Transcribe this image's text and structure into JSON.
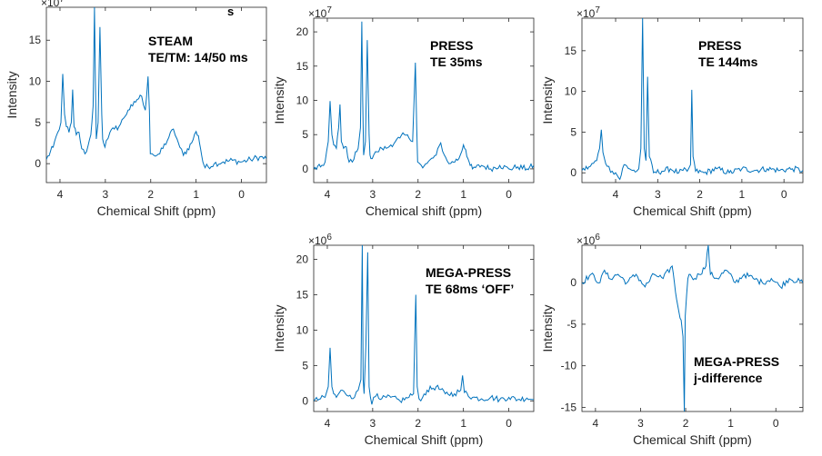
{
  "stray_label": "s",
  "style": {
    "line_color": "#0072BD",
    "axis_color": "#262626"
  },
  "chart_data": [
    {
      "type": "line",
      "annotation": [
        "STEAM",
        "TE/TM: 14/50 ms"
      ],
      "xlabel": "Chemical Shift (ppm)",
      "ylabel": "Intensity",
      "exponent": "×10^7",
      "x_reversed": true,
      "xlim": [
        -0.55,
        4.3
      ],
      "ylim": [
        -2.3,
        19
      ],
      "xticks": [
        4,
        3,
        2,
        1,
        0
      ],
      "yticks": [
        0,
        5,
        10,
        15
      ],
      "series": [
        {
          "x": [
            4.3,
            4.15,
            4.05,
            3.98,
            3.94,
            3.9,
            3.86,
            3.8,
            3.75,
            3.72,
            3.69,
            3.64,
            3.58,
            3.52,
            3.45,
            3.38,
            3.32,
            3.27,
            3.24,
            3.22,
            3.2,
            3.16,
            3.12,
            3.08,
            3.06,
            3.04,
            3.01,
            2.98,
            2.9,
            2.8,
            2.7,
            2.6,
            2.5,
            2.4,
            2.3,
            2.2,
            2.12,
            2.06,
            2.03,
            2.01,
            1.97,
            1.93,
            1.8,
            1.6,
            1.5,
            1.42,
            1.36,
            1.28,
            1.1,
            1.0,
            0.95,
            0.9,
            0.85,
            0.8,
            0.6,
            0.4,
            0.2,
            0.0,
            -0.2,
            -0.4,
            -0.55
          ],
          "y": [
            0.5,
            2.0,
            3.8,
            5.0,
            10.9,
            6.0,
            4.5,
            3.8,
            5.0,
            9.0,
            4.5,
            3.5,
            3.8,
            1.8,
            1.2,
            2.2,
            3.5,
            7.0,
            19.0,
            10.0,
            3.0,
            5.0,
            16.6,
            6.0,
            3.0,
            2.5,
            2.0,
            2.8,
            3.8,
            4.2,
            4.5,
            5.5,
            6.5,
            7.0,
            7.8,
            8.2,
            6.5,
            10.6,
            6.5,
            1.2,
            1.2,
            1.0,
            1.2,
            3.2,
            4.2,
            3.0,
            2.0,
            1.0,
            2.5,
            3.9,
            3.4,
            1.8,
            0.2,
            -0.5,
            0.0,
            0.2,
            0.4,
            0.2,
            0.5,
            0.8,
            0.6
          ]
        }
      ]
    },
    {
      "type": "line",
      "annotation": [
        "PRESS",
        "TE 35ms"
      ],
      "xlabel": "Chemical shift (ppm)",
      "ylabel": "Intensity",
      "exponent": "×10^7",
      "x_reversed": true,
      "xlim": [
        -0.55,
        4.3
      ],
      "ylim": [
        -2,
        22
      ],
      "xticks": [
        4,
        3,
        2,
        1,
        0
      ],
      "yticks": [
        0,
        5,
        10,
        15,
        20
      ],
      "series": [
        {
          "x": [
            4.3,
            4.15,
            4.05,
            3.98,
            3.94,
            3.9,
            3.86,
            3.8,
            3.75,
            3.72,
            3.69,
            3.64,
            3.58,
            3.52,
            3.45,
            3.38,
            3.32,
            3.27,
            3.24,
            3.22,
            3.2,
            3.16,
            3.12,
            3.08,
            3.06,
            3.04,
            3.01,
            2.98,
            2.9,
            2.8,
            2.7,
            2.6,
            2.5,
            2.4,
            2.3,
            2.2,
            2.12,
            2.06,
            2.03,
            2.01,
            1.97,
            1.93,
            1.8,
            1.6,
            1.5,
            1.42,
            1.36,
            1.28,
            1.1,
            1.0,
            0.95,
            0.9,
            0.85,
            0.8,
            0.6,
            0.4,
            0.2,
            0.0,
            -0.2,
            -0.4,
            -0.55
          ],
          "y": [
            0.0,
            0.3,
            1.0,
            4.0,
            9.9,
            5.0,
            3.5,
            3.0,
            6.0,
            9.4,
            4.0,
            3.0,
            3.2,
            1.0,
            1.0,
            2.5,
            3.0,
            6.0,
            21.5,
            10.0,
            2.0,
            4.0,
            18.8,
            5.0,
            2.0,
            1.5,
            1.5,
            2.0,
            2.5,
            3.0,
            3.0,
            3.5,
            4.0,
            4.5,
            5.0,
            4.5,
            4.0,
            15.5,
            6.0,
            1.0,
            0.8,
            0.5,
            0.8,
            2.0,
            3.8,
            2.0,
            1.2,
            0.8,
            1.5,
            3.5,
            2.8,
            1.5,
            0.5,
            0.0,
            0.5,
            0.0,
            0.5,
            0.0,
            0.3,
            0.0,
            0.5
          ]
        }
      ]
    },
    {
      "type": "line",
      "annotation": [
        "PRESS",
        "TE 144ms"
      ],
      "xlabel": "Chemical Shift (ppm)",
      "ylabel": "Intensity",
      "exponent": "×10^7",
      "x_reversed": true,
      "xlim": [
        -0.45,
        4.8
      ],
      "ylim": [
        -1.2,
        19
      ],
      "xticks": [
        4,
        3,
        2,
        1,
        0
      ],
      "yticks": [
        0,
        5,
        10,
        15
      ],
      "series": [
        {
          "x": [
            4.8,
            4.6,
            4.45,
            4.38,
            4.34,
            4.3,
            4.2,
            4.08,
            4.0,
            3.9,
            3.8,
            3.6,
            3.5,
            3.45,
            3.4,
            3.36,
            3.32,
            3.28,
            3.24,
            3.2,
            3.1,
            2.9,
            2.7,
            2.5,
            2.4,
            2.3,
            2.22,
            2.19,
            2.16,
            2.1,
            1.9,
            1.6,
            1.3,
            1.0,
            0.7,
            0.4,
            0.1,
            -0.2,
            -0.45
          ],
          "y": [
            0.3,
            0.8,
            1.5,
            3.0,
            5.3,
            2.5,
            0.8,
            0.2,
            0.0,
            -0.8,
            1.0,
            0.3,
            0.2,
            0.5,
            3.0,
            19.0,
            3.0,
            1.5,
            11.8,
            2.0,
            0.0,
            0.2,
            0.5,
            0.0,
            0.3,
            0.2,
            1.0,
            10.2,
            2.0,
            0.2,
            0.0,
            0.5,
            0.0,
            0.5,
            0.3,
            0.5,
            0.3,
            0.5,
            0.3
          ]
        }
      ]
    },
    {
      "type": "line",
      "annotation": [
        "MEGA-PRESS",
        "TE 68ms ‘OFF’"
      ],
      "xlabel": "Chemical Shift (ppm)",
      "ylabel": "Intensity",
      "exponent": "×10^6",
      "x_reversed": true,
      "xlim": [
        -0.55,
        4.3
      ],
      "ylim": [
        -1.5,
        22
      ],
      "xticks": [
        4,
        3,
        2,
        1,
        0
      ],
      "yticks": [
        0,
        5,
        10,
        15,
        20
      ],
      "series": [
        {
          "x": [
            4.3,
            4.15,
            4.05,
            3.98,
            3.94,
            3.9,
            3.86,
            3.8,
            3.7,
            3.6,
            3.5,
            3.4,
            3.32,
            3.26,
            3.23,
            3.21,
            3.19,
            3.15,
            3.11,
            3.08,
            3.05,
            3.02,
            2.98,
            2.9,
            2.8,
            2.6,
            2.4,
            2.2,
            2.1,
            2.05,
            2.02,
            1.98,
            1.9,
            1.8,
            1.6,
            1.4,
            1.2,
            1.06,
            1.02,
            0.98,
            0.8,
            0.6,
            0.4,
            0.2,
            0.0,
            -0.2,
            -0.4,
            -0.55
          ],
          "y": [
            0.0,
            0.3,
            0.5,
            2.0,
            7.5,
            2.0,
            1.0,
            0.5,
            1.5,
            1.0,
            0.8,
            0.5,
            1.5,
            3.0,
            22.0,
            3.0,
            1.0,
            8.0,
            21.0,
            2.0,
            0.5,
            -0.5,
            0.5,
            1.0,
            0.3,
            0.5,
            0.0,
            0.5,
            1.0,
            15.0,
            2.0,
            0.3,
            0.5,
            1.5,
            2.0,
            1.0,
            1.0,
            1.5,
            3.6,
            1.2,
            0.5,
            0.3,
            0.5,
            0.2,
            0.5,
            0.2,
            0.4,
            0.2
          ]
        }
      ]
    },
    {
      "type": "line",
      "annotation": [
        "MEGA-PRESS",
        "j-difference"
      ],
      "xlabel": "Chemical Shift (ppm)",
      "ylabel": "Intensity",
      "exponent": "×10^6",
      "x_reversed": true,
      "xlim": [
        -0.6,
        4.3
      ],
      "ylim": [
        -15.5,
        4.5
      ],
      "xticks": [
        4,
        3,
        2,
        1,
        0
      ],
      "yticks": [
        0,
        -5,
        -10,
        -15
      ],
      "series": [
        {
          "x": [
            4.3,
            4.1,
            3.9,
            3.8,
            3.7,
            3.5,
            3.3,
            3.1,
            2.9,
            2.7,
            2.5,
            2.3,
            2.25,
            2.2,
            2.15,
            2.1,
            2.06,
            2.03,
            2.01,
            1.98,
            1.95,
            1.9,
            1.8,
            1.7,
            1.55,
            1.5,
            1.45,
            1.3,
            1.1,
            0.9,
            0.7,
            0.5,
            0.3,
            0.1,
            -0.1,
            -0.3,
            -0.6
          ],
          "y": [
            0.0,
            1.0,
            0.0,
            1.5,
            0.5,
            1.0,
            0.0,
            1.0,
            -0.5,
            1.0,
            0.5,
            2.0,
            0.0,
            -2.0,
            -3.5,
            -4.5,
            -6.5,
            -15.5,
            -4.0,
            -1.5,
            0.5,
            1.0,
            0.5,
            1.0,
            2.0,
            4.5,
            1.0,
            0.5,
            1.5,
            0.0,
            1.0,
            0.5,
            0.0,
            0.5,
            -0.5,
            0.5,
            0.0
          ]
        }
      ]
    }
  ]
}
